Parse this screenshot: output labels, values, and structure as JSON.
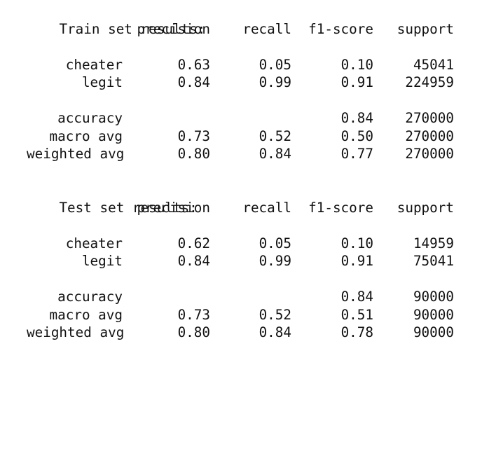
{
  "train": {
    "title": "Train set results:",
    "headers": {
      "precision": "precision",
      "recall": "recall",
      "f1": "f1-score",
      "support": "support"
    },
    "rows": [
      {
        "label": "cheater",
        "precision": "0.63",
        "recall": "0.05",
        "f1": "0.10",
        "support": "45041"
      },
      {
        "label": "legit",
        "precision": "0.84",
        "recall": "0.99",
        "f1": "0.91",
        "support": "224959"
      }
    ],
    "summary": [
      {
        "label": "accuracy",
        "precision": "",
        "recall": "",
        "f1": "0.84",
        "support": "270000"
      },
      {
        "label": "macro avg",
        "precision": "0.73",
        "recall": "0.52",
        "f1": "0.50",
        "support": "270000"
      },
      {
        "label": "weighted avg",
        "precision": "0.80",
        "recall": "0.84",
        "f1": "0.77",
        "support": "270000"
      }
    ]
  },
  "test": {
    "title": "Test set results:",
    "headers": {
      "precision": "precision",
      "recall": "recall",
      "f1": "f1-score",
      "support": "support"
    },
    "rows": [
      {
        "label": "cheater",
        "precision": "0.62",
        "recall": "0.05",
        "f1": "0.10",
        "support": "14959"
      },
      {
        "label": "legit",
        "precision": "0.84",
        "recall": "0.99",
        "f1": "0.91",
        "support": "75041"
      }
    ],
    "summary": [
      {
        "label": "accuracy",
        "precision": "",
        "recall": "",
        "f1": "0.84",
        "support": "90000"
      },
      {
        "label": "macro avg",
        "precision": "0.73",
        "recall": "0.52",
        "f1": "0.51",
        "support": "90000"
      },
      {
        "label": "weighted avg",
        "precision": "0.80",
        "recall": "0.84",
        "f1": "0.78",
        "support": "90000"
      }
    ]
  }
}
